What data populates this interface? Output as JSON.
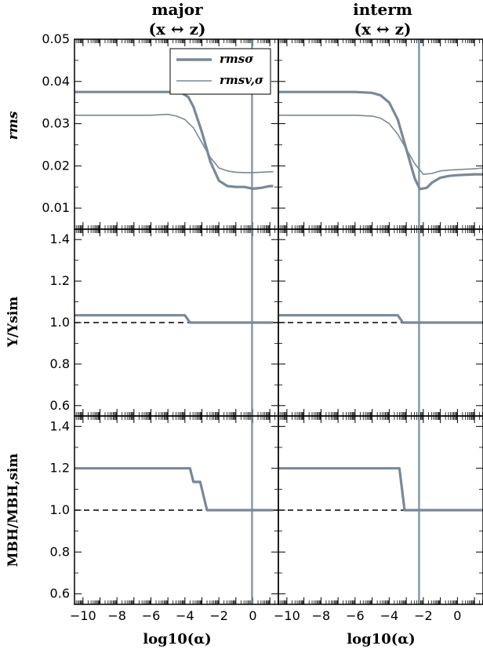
{
  "column_titles": [
    {
      "line1": "major",
      "line2": "(x ↔ z)"
    },
    {
      "line1": "interm",
      "line2": "(x ↔ z)"
    }
  ],
  "row_ylabels": [
    "rms",
    "Υ/Υsim",
    "MBH/MBH,sim"
  ],
  "xlabel": "log10(α)",
  "legend": [
    "rmsσ",
    "rmsv,σ"
  ],
  "colors": {
    "series": "#7a8898",
    "axes": "#000000",
    "reference": "#000000"
  },
  "chart_data": [
    {
      "type": "line",
      "panel": "rms_major",
      "xlim": [
        -10.5,
        1.5
      ],
      "ylim": [
        0.005,
        0.05
      ],
      "yticks": [
        "0.01",
        "0.02",
        "0.03",
        "0.04",
        "0.05"
      ],
      "vline": -0.05,
      "series": [
        {
          "name": "rmsσ",
          "x": [
            -10.5,
            -6,
            -5,
            -4.2,
            -3.8,
            -3.5,
            -3,
            -2.5,
            -2,
            -1.5,
            -1,
            -0.5,
            0,
            0.5,
            1,
            1.2
          ],
          "y": [
            0.0375,
            0.0375,
            0.0375,
            0.0373,
            0.0363,
            0.034,
            0.028,
            0.021,
            0.0165,
            0.0152,
            0.015,
            0.015,
            0.0146,
            0.0148,
            0.0152,
            0.0152
          ]
        },
        {
          "name": "rmsv,σ",
          "x": [
            -10.5,
            -6,
            -5,
            -4.5,
            -4,
            -3.5,
            -3,
            -2.5,
            -2,
            -1.5,
            -1,
            -0.5,
            0,
            0.5,
            1,
            1.2
          ],
          "y": [
            0.032,
            0.032,
            0.0322,
            0.0318,
            0.031,
            0.029,
            0.0255,
            0.022,
            0.0195,
            0.0188,
            0.0185,
            0.0184,
            0.0184,
            0.0185,
            0.0186,
            0.0186
          ]
        }
      ]
    },
    {
      "type": "line",
      "panel": "rms_interm",
      "xlim": [
        -10.5,
        1.5
      ],
      "ylim": [
        0.005,
        0.05
      ],
      "vline": -2.25,
      "series": [
        {
          "name": "rmsσ",
          "x": [
            -10.5,
            -6,
            -5,
            -4.5,
            -4,
            -3.5,
            -3,
            -2.5,
            -2.2,
            -1.8,
            -1.5,
            -1,
            -0.5,
            0,
            0.5,
            1,
            1.5
          ],
          "y": [
            0.0375,
            0.0375,
            0.0373,
            0.0367,
            0.035,
            0.031,
            0.024,
            0.017,
            0.0145,
            0.0148,
            0.016,
            0.0172,
            0.0176,
            0.0178,
            0.0179,
            0.018,
            0.018
          ]
        },
        {
          "name": "rmsv,σ",
          "x": [
            -10.5,
            -6,
            -5,
            -4.5,
            -4,
            -3.5,
            -3,
            -2.5,
            -2,
            -1.5,
            -1,
            -0.5,
            0,
            0.5,
            1,
            1.5
          ],
          "y": [
            0.032,
            0.032,
            0.0318,
            0.0313,
            0.03,
            0.0275,
            0.024,
            0.0205,
            0.018,
            0.0182,
            0.0188,
            0.019,
            0.0191,
            0.0192,
            0.0193,
            0.0195
          ]
        }
      ]
    },
    {
      "type": "line",
      "panel": "ml_major",
      "xlim": [
        -10.5,
        1.5
      ],
      "ylim": [
        0.55,
        1.45
      ],
      "yticks": [
        "0.6",
        "0.8",
        "1.0",
        "1.2",
        "1.4"
      ],
      "reference_y": 1.0,
      "vline": -0.05,
      "series": [
        {
          "name": "rmsσ",
          "x": [
            -10.5,
            -4,
            -3.7,
            1.2
          ],
          "y": [
            1.035,
            1.035,
            1.0,
            1.0
          ]
        }
      ]
    },
    {
      "type": "line",
      "panel": "ml_interm",
      "xlim": [
        -10.5,
        1.5
      ],
      "ylim": [
        0.55,
        1.45
      ],
      "reference_y": 1.0,
      "vline": -2.25,
      "series": [
        {
          "name": "rmsσ",
          "x": [
            -10.5,
            -3.5,
            -3.2,
            1.5
          ],
          "y": [
            1.035,
            1.035,
            1.0,
            1.0
          ]
        }
      ]
    },
    {
      "type": "line",
      "panel": "mbh_major",
      "xlim": [
        -10.5,
        1.5
      ],
      "ylim": [
        0.55,
        1.45
      ],
      "yticks": [
        "0.6",
        "0.8",
        "1.0",
        "1.2",
        "1.4"
      ],
      "xticks": [
        "−10",
        "−8",
        "−6",
        "−4",
        "−2",
        "0"
      ],
      "reference_y": 1.0,
      "vline": -0.05,
      "series": [
        {
          "name": "rmsσ",
          "x": [
            -10.5,
            -3.7,
            -3.5,
            -3.1,
            -2.7,
            1.2
          ],
          "y": [
            1.2,
            1.2,
            1.135,
            1.135,
            1.0,
            1.0
          ]
        }
      ]
    },
    {
      "type": "line",
      "panel": "mbh_interm",
      "xlim": [
        -10.5,
        1.5
      ],
      "ylim": [
        0.55,
        1.45
      ],
      "xticks": [
        "−10",
        "−8",
        "−6",
        "−4",
        "−2",
        "0"
      ],
      "reference_y": 1.0,
      "vline": -2.25,
      "series": [
        {
          "name": "rmsσ",
          "x": [
            -10.5,
            -3.4,
            -3.1,
            1.5
          ],
          "y": [
            1.2,
            1.2,
            1.0,
            1.0
          ]
        }
      ]
    }
  ]
}
